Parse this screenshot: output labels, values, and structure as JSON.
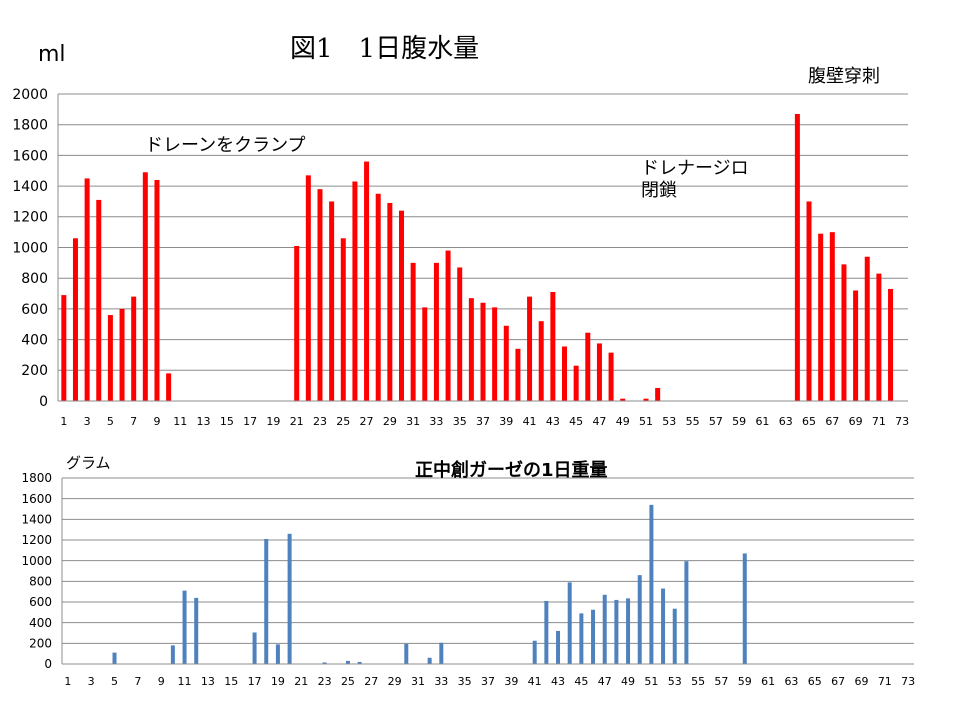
{
  "chart_data": [
    {
      "type": "bar",
      "title": "図1　1日腹水量",
      "ylabel": "ml",
      "xlabel": "",
      "ylim": [
        0,
        2000
      ],
      "yticks": [
        0,
        200,
        400,
        600,
        800,
        1000,
        1200,
        1400,
        1600,
        1800,
        2000
      ],
      "xlim": [
        1,
        73
      ],
      "xticks": [
        1,
        3,
        5,
        7,
        9,
        11,
        13,
        15,
        17,
        19,
        21,
        23,
        25,
        27,
        29,
        31,
        33,
        35,
        37,
        39,
        41,
        43,
        45,
        47,
        49,
        51,
        53,
        55,
        57,
        59,
        61,
        63,
        65,
        67,
        69,
        71,
        73
      ],
      "grid": true,
      "color": "#ff0000",
      "annotations": [
        {
          "text": "ドレーンをクランプ",
          "x": 15
        },
        {
          "text": "ドレナージロ\n閉鎖",
          "x": 51
        },
        {
          "text": "腹壁穿刺",
          "x": 66
        }
      ],
      "values": [
        690,
        1060,
        1450,
        1310,
        560,
        600,
        680,
        1490,
        1440,
        180,
        0,
        0,
        0,
        0,
        0,
        0,
        0,
        0,
        0,
        0,
        1010,
        1470,
        1380,
        1300,
        1060,
        1430,
        1560,
        1350,
        1290,
        1240,
        900,
        610,
        900,
        980,
        870,
        670,
        640,
        610,
        490,
        340,
        680,
        520,
        710,
        355,
        230,
        445,
        375,
        315,
        15,
        0,
        15,
        85,
        0,
        0,
        0,
        0,
        0,
        0,
        0,
        0,
        0,
        0,
        0,
        1870,
        1300,
        1090,
        1100,
        890,
        720,
        940,
        830,
        730,
        0
      ]
    },
    {
      "type": "bar",
      "title": "正中創ガーゼの1日重量",
      "ylabel": "グラム",
      "xlabel": "",
      "ylim": [
        0,
        1800
      ],
      "yticks": [
        0,
        200,
        400,
        600,
        800,
        1000,
        1200,
        1400,
        1600,
        1800
      ],
      "xlim": [
        1,
        73
      ],
      "xticks": [
        1,
        3,
        5,
        7,
        9,
        11,
        13,
        15,
        17,
        19,
        21,
        23,
        25,
        27,
        29,
        31,
        33,
        35,
        37,
        39,
        41,
        43,
        45,
        47,
        49,
        51,
        53,
        55,
        57,
        59,
        61,
        63,
        65,
        67,
        69,
        71,
        73
      ],
      "grid": true,
      "color": "#4f81bd",
      "values": [
        0,
        0,
        0,
        0,
        110,
        0,
        0,
        0,
        0,
        180,
        710,
        640,
        0,
        0,
        0,
        0,
        305,
        1210,
        190,
        1260,
        0,
        0,
        15,
        0,
        30,
        20,
        0,
        0,
        0,
        195,
        0,
        60,
        205,
        0,
        0,
        0,
        0,
        0,
        0,
        0,
        225,
        610,
        320,
        790,
        490,
        525,
        670,
        620,
        635,
        860,
        1540,
        730,
        535,
        995,
        0,
        0,
        0,
        0,
        1070,
        0,
        0,
        0,
        0,
        0,
        0,
        0,
        0,
        0,
        0,
        0,
        0,
        0,
        0
      ]
    }
  ]
}
